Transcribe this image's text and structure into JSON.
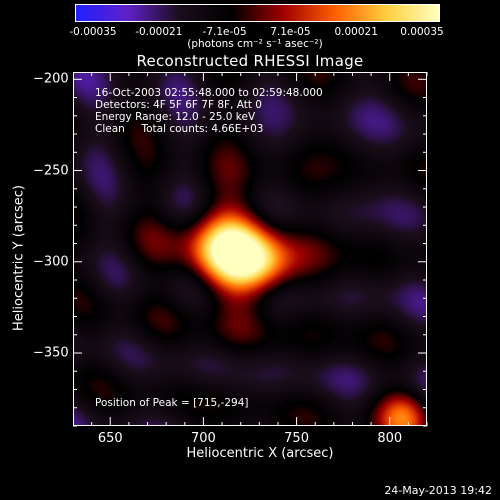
{
  "chart_data": {
    "type": "heatmap",
    "title": "Reconstructed RHESSI Image",
    "xlabel": "Heliocentric X (arcsec)",
    "ylabel": "Heliocentric Y (arcsec)",
    "xlim": [
      630,
      820
    ],
    "ylim": [
      -390,
      -196
    ],
    "x_ticks": [
      650,
      700,
      750,
      800
    ],
    "y_ticks": [
      -200,
      -250,
      -300,
      -350
    ],
    "colorbar": {
      "ticks": [
        "-0.00035",
        "-0.00021",
        "-7.1e-05",
        "7.1e-05",
        "0.00021",
        "0.00035"
      ],
      "unit": "(photons cm⁻² s⁻¹ asec⁻²)",
      "range": [
        -0.00035,
        0.00035
      ],
      "colormap": [
        "#2020ff",
        "#6020c8",
        "#1a0d1a",
        "#000000",
        "#a00000",
        "#ff6000",
        "#ffd040",
        "#ffffc0"
      ]
    },
    "annotations": [
      "16-Oct-2003 02:55:48.000 to 02:59:48.000",
      "Detectors: 4F 5F 6F 7F 8F, Att 0",
      "Energy Range: 12.0 - 25.0 keV",
      "Clean     Total counts: 4.66E+03"
    ],
    "peak": {
      "x": 715,
      "y": -294,
      "label": "Position of Peak = [715,-294]"
    }
  },
  "footer": "24-May-2013 19:42"
}
